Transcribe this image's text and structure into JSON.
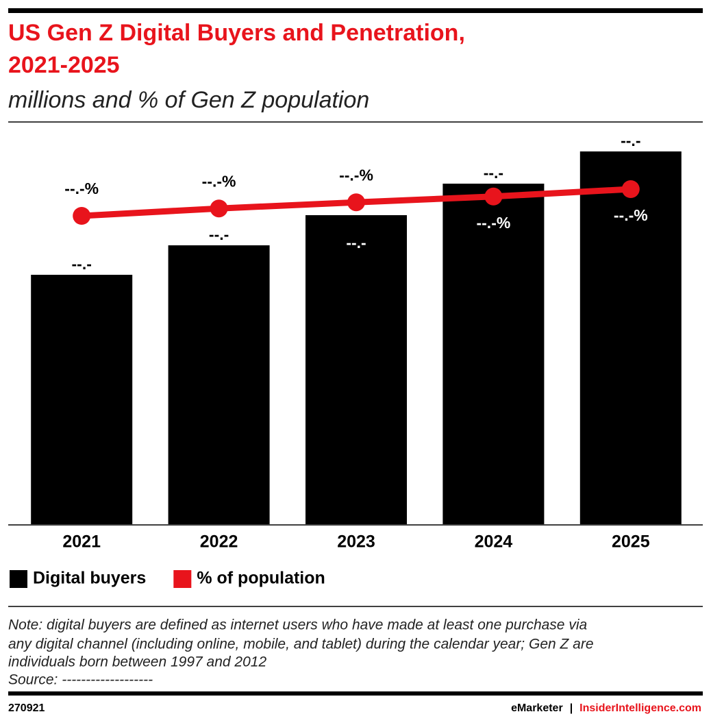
{
  "chart_data": {
    "type": "bar",
    "title": [
      "US Gen Z Digital Buyers and Penetration,",
      "2021-2025"
    ],
    "subtitle": "millions and % of Gen Z population",
    "categories": [
      "2021",
      "2022",
      "2023",
      "2024",
      "2025"
    ],
    "ylim": [
      0,
      60
    ],
    "y2lim": [
      0,
      100
    ],
    "series": [
      {
        "name": "Digital buyers",
        "type": "bar",
        "color": "#000000",
        "values": [
          36.4,
          40.7,
          45.1,
          49.7,
          54.4
        ],
        "value_labels": [
          "--.-",
          "--.-",
          "--.-",
          "--.-",
          "--.-"
        ]
      },
      {
        "name": "% of population",
        "type": "line",
        "axis": "y2",
        "color": "#e8141c",
        "values": [
          75.0,
          76.8,
          78.3,
          79.7,
          81.5
        ],
        "value_labels": [
          "--.-%",
          "--.-%",
          "--.-%",
          "--.-%",
          "--.-%"
        ]
      }
    ],
    "legend": "bottom-left",
    "note": [
      "Note: digital buyers are defined as internet users who have made at least one purchase via",
      "any digital channel (including online, mobile, and tablet) during the calendar year; Gen Z are",
      "individuals born between 1997 and 2012",
      "Source: -------------------"
    ],
    "footer": {
      "id": "270921",
      "brand": "eMarketer",
      "separator": "|",
      "site": "InsiderIntelligence.com"
    }
  }
}
